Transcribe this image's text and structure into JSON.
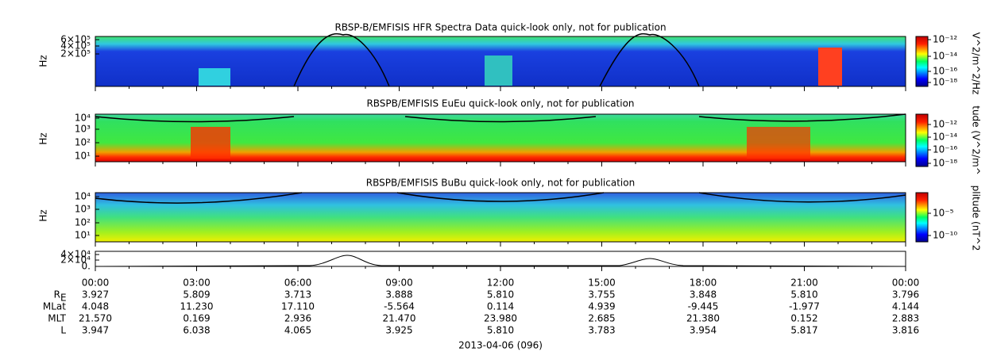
{
  "panels": [
    {
      "title": "RBSP-B/EMFISIS  HFR Spectra Data quick-look only, not for publication",
      "ylabel": "Hz",
      "yticks": [
        "6×10⁵",
        "4×10⁵",
        "2×10⁵"
      ],
      "colorbar_label": "V^2/m^2/Hz",
      "colorbar_ticks": [
        "10⁻¹²",
        "10⁻¹⁴",
        "10⁻¹⁶",
        "10⁻¹⁸"
      ]
    },
    {
      "title": "RBSPB/EMFISIS  EuEu quick-look only, not for publication",
      "ylabel": "Hz",
      "yticks": [
        "10⁴",
        "10³",
        "10²",
        "10¹"
      ],
      "colorbar_label": "tude (V^2/m^",
      "colorbar_ticks": [
        "10⁻¹²",
        "10⁻¹⁴",
        "10⁻¹⁶",
        "10⁻¹⁸"
      ]
    },
    {
      "title": "RBSPB/EMFISIS  BuBu quick-look only, not for publication",
      "ylabel": "Hz",
      "yticks": [
        "10⁴",
        "10³",
        "10²",
        "10¹"
      ],
      "colorbar_label": "plitude (nT^2",
      "colorbar_ticks": [
        "10⁻⁵",
        "10⁻¹⁰"
      ]
    },
    {
      "yticks": [
        "4×10⁴",
        "2×10⁴",
        "0."
      ]
    }
  ],
  "time_labels": [
    "00:00",
    "03:00",
    "06:00",
    "09:00",
    "12:00",
    "15:00",
    "18:00",
    "21:00",
    "00:00"
  ],
  "ephemeris": [
    {
      "label": "R",
      "label_sub": "E",
      "values": [
        "3.927",
        "5.809",
        "3.713",
        "3.888",
        "5.810",
        "3.755",
        "3.848",
        "5.810",
        "3.796"
      ]
    },
    {
      "label": "MLat",
      "values": [
        "4.048",
        "11.230",
        "17.110",
        "-5.564",
        "0.114",
        "4.939",
        "-9.445",
        "-1.977",
        "4.144"
      ]
    },
    {
      "label": "MLT",
      "values": [
        "21.570",
        "0.169",
        "2.936",
        "21.470",
        "23.980",
        "2.685",
        "21.380",
        "0.152",
        "2.883"
      ]
    },
    {
      "label": "L",
      "values": [
        "3.947",
        "6.038",
        "4.065",
        "3.925",
        "5.810",
        "3.783",
        "3.954",
        "5.817",
        "3.816"
      ]
    }
  ],
  "date": "2013-04-06 (096)"
}
